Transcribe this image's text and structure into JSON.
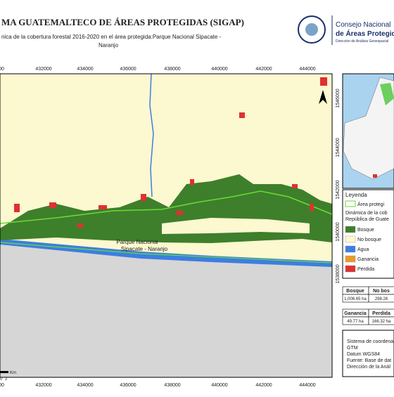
{
  "header": {
    "title": "MA GUATEMALTECO DE ÁREAS PROTEGIDAS  (SIGAP)",
    "subtitle_lines": [
      "nica de la cobertura forestal 2016-2020 en el área protegida:Parque Nacional Sipacate -",
      "Naranjo"
    ],
    "logo": {
      "line1": "Consejo Nacional",
      "line2": "de Áreas Protegidas",
      "line3": "Dirección de Análisis Geoespacial"
    }
  },
  "map": {
    "x_labels": [
      "00",
      432000,
      434000,
      436000,
      438000,
      440000,
      442000,
      444000
    ],
    "y_labels": [
      1546000,
      1544000,
      1542000,
      1540000,
      1538000
    ],
    "area_label_lines": [
      "Parque Nacional",
      "Sipacate - Naranjo"
    ],
    "scale": {
      "zero": "0",
      "two": "2",
      "unit": "Km"
    }
  },
  "legend": {
    "title": "Leyenda",
    "protected": "Área protegi",
    "subtitle_lines": [
      "Dinámica de la cob",
      "República de Guate"
    ],
    "items": [
      "Bosque",
      "No bosque",
      "Agua",
      "Ganancia",
      "Pérdida"
    ]
  },
  "table1": {
    "headers": [
      "Bosque",
      "No bos"
    ],
    "values": [
      "1,006.65 ha",
      "298.26"
    ]
  },
  "table2": {
    "headers": [
      "Ganancia",
      "Perdida"
    ],
    "values": [
      "49.77 ha",
      "166.32 ha"
    ]
  },
  "footer": {
    "lines": [
      "Sistema de coordena",
      "GTM",
      "Datum WGS84",
      "Fuente: Base de dat",
      "Dirección de la Anál"
    ]
  }
}
